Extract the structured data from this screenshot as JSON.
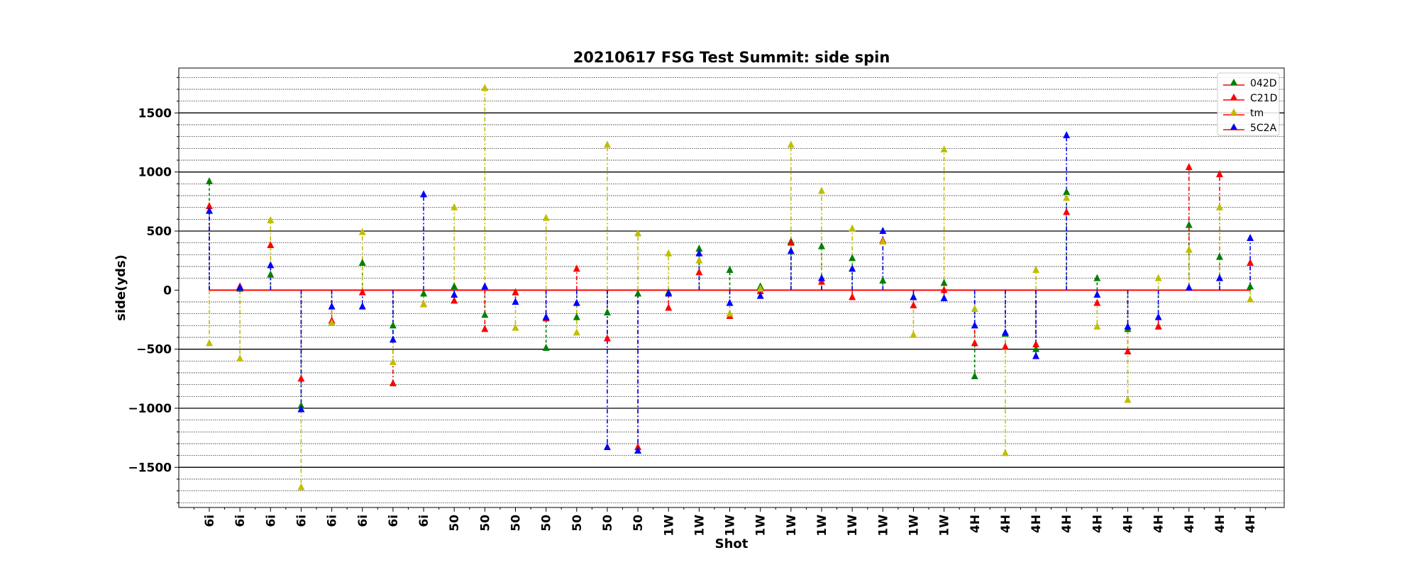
{
  "chart_data": {
    "type": "stem",
    "title": "20210617 FSG Test Summit: side spin",
    "xlabel": "Shot",
    "ylabel": "side(yds)",
    "ylim": [
      -1840,
      1880
    ],
    "yticks": [
      -1500,
      -1000,
      -500,
      0,
      500,
      1000,
      1500
    ],
    "ytick_labels": [
      "−1500",
      "−1000",
      "−500",
      "0",
      "500",
      "1000",
      "1500"
    ],
    "ygrid_major_step": 500,
    "ygrid_minor_step": 100,
    "legend_position": "top-right",
    "baseline": 0,
    "baseline_color": "#ff0000",
    "categories": [
      "6i",
      "6i",
      "6i",
      "6i",
      "6i",
      "6i",
      "6i",
      "6i",
      "50",
      "50",
      "50",
      "50",
      "50",
      "50",
      "50",
      "1W",
      "1W",
      "1W",
      "1W",
      "1W",
      "1W",
      "1W",
      "1W",
      "1W",
      "1W",
      "4H",
      "4H",
      "4H",
      "4H",
      "4H",
      "4H",
      "4H",
      "4H",
      "4H",
      "4H"
    ],
    "series": [
      {
        "name": "042D",
        "color": "#008000",
        "values": [
          920,
          10,
          130,
          -980,
          -280,
          230,
          -300,
          -30,
          30,
          -210,
          -20,
          -490,
          -230,
          -190,
          -30,
          -20,
          350,
          170,
          30,
          410,
          370,
          270,
          80,
          -60,
          60,
          -730,
          -370,
          -500,
          830,
          100,
          -330,
          -310,
          550,
          280,
          30
        ]
      },
      {
        "name": "C21D",
        "color": "#ff0000",
        "values": [
          710,
          30,
          380,
          -750,
          -260,
          -20,
          -790,
          -120,
          -90,
          -330,
          -20,
          -240,
          180,
          -410,
          -1330,
          -150,
          150,
          -220,
          -10,
          400,
          70,
          -60,
          420,
          -130,
          0,
          -450,
          -480,
          -460,
          660,
          -110,
          -520,
          -310,
          1040,
          980,
          230
        ]
      },
      {
        "name": "tm",
        "color": "#bfbf00",
        "values": [
          -450,
          -580,
          590,
          -1670,
          -280,
          490,
          -610,
          -120,
          700,
          1710,
          -320,
          610,
          -360,
          1230,
          480,
          310,
          250,
          -200,
          10,
          1230,
          840,
          520,
          410,
          -380,
          1190,
          -160,
          -1380,
          170,
          780,
          -310,
          -930,
          100,
          340,
          700,
          -80
        ]
      },
      {
        "name": "5C2A",
        "color": "#0000ff",
        "values": [
          670,
          20,
          210,
          -1010,
          -140,
          -140,
          -420,
          810,
          -40,
          30,
          -100,
          -230,
          -110,
          -1330,
          -1360,
          -30,
          310,
          -110,
          -50,
          330,
          100,
          180,
          500,
          -60,
          -70,
          -300,
          -360,
          -560,
          1310,
          -40,
          -310,
          -230,
          20,
          100,
          440
        ]
      }
    ]
  }
}
